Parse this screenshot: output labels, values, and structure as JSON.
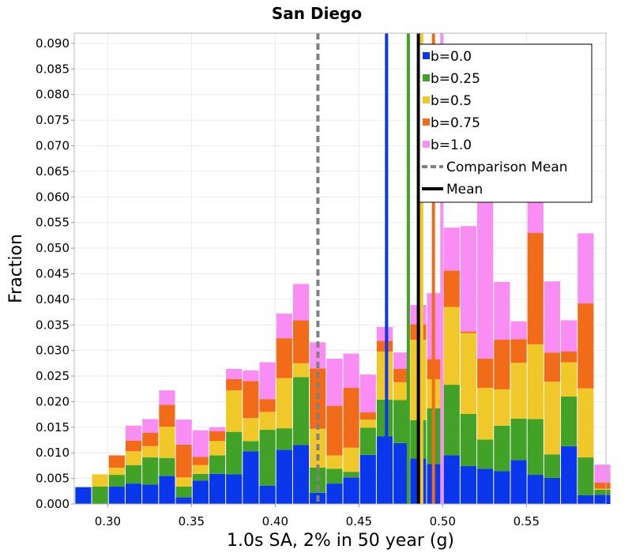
{
  "chart_data": {
    "type": "bar",
    "stacked": true,
    "title": "San Diego",
    "xlabel": "1.0s SA, 2% in 50 year (g)",
    "ylabel": "Fraction",
    "xlim": [
      0.28,
      0.5975
    ],
    "ylim": [
      0.0,
      0.092
    ],
    "bin_width": 0.01,
    "x_ticks": [
      "0.30",
      "0.35",
      "0.40",
      "0.45",
      "0.50",
      "0.55"
    ],
    "y_ticks": [
      "0.000",
      "0.005",
      "0.010",
      "0.015",
      "0.020",
      "0.025",
      "0.030",
      "0.035",
      "0.040",
      "0.045",
      "0.050",
      "0.055",
      "0.060",
      "0.065",
      "0.070",
      "0.075",
      "0.080",
      "0.085",
      "0.090"
    ],
    "grid": true,
    "legend_position": "top-right",
    "x": [
      0.2854,
      0.2954,
      0.3054,
      0.3154,
      0.3254,
      0.3354,
      0.3454,
      0.3554,
      0.3654,
      0.3754,
      0.3854,
      0.3954,
      0.4054,
      0.4154,
      0.4254,
      0.4354,
      0.4454,
      0.4554,
      0.4654,
      0.4754,
      0.4854,
      0.4954,
      0.5054,
      0.5154,
      0.5254,
      0.5354,
      0.5454,
      0.5554,
      0.5654,
      0.5754,
      0.5854,
      0.5954
    ],
    "series": [
      {
        "name": "b=0.0",
        "color": "#0a36ec",
        "values": [
          0.0033,
          0.0,
          0.0034,
          0.004,
          0.0038,
          0.0055,
          0.0013,
          0.0046,
          0.0059,
          0.0058,
          0.0103,
          0.0036,
          0.0106,
          0.0115,
          0.0022,
          0.004,
          0.0052,
          0.0096,
          0.0132,
          0.0119,
          0.0089,
          0.0078,
          0.0095,
          0.0074,
          0.0069,
          0.0064,
          0.0086,
          0.0057,
          0.0051,
          0.0113,
          0.0017,
          0.0018
        ]
      },
      {
        "name": "b=0.25",
        "color": "#41a227",
        "values": [
          0.0,
          0.0034,
          0.0023,
          0.0036,
          0.0053,
          0.0035,
          0.0021,
          0.0013,
          0.0036,
          0.0083,
          0.002,
          0.0109,
          0.0042,
          0.0133,
          0.0049,
          0.0029,
          0.0011,
          0.0053,
          0.0072,
          0.0084,
          0.0075,
          0.0109,
          0.0138,
          0.0102,
          0.0057,
          0.0089,
          0.0081,
          0.0109,
          0.0046,
          0.0097,
          0.0074,
          0.001
        ]
      },
      {
        "name": "b=0.5",
        "color": "#f1c82a",
        "values": [
          0.0,
          0.0024,
          0.0014,
          0.0027,
          0.0022,
          0.0061,
          0.0018,
          0.0017,
          0.0028,
          0.0081,
          0.0045,
          0.0035,
          0.0098,
          0.0027,
          0.0076,
          0.0026,
          0.0047,
          0.0016,
          0.0094,
          0.0035,
          0.0157,
          0.0057,
          0.0152,
          0.0158,
          0.0101,
          0.0071,
          0.0109,
          0.0146,
          0.0142,
          0.0067,
          0.0135,
          0.0002
        ]
      },
      {
        "name": "b=0.75",
        "color": "#f26b19",
        "values": [
          0.0,
          0.0,
          0.0024,
          0.0021,
          0.0026,
          0.0043,
          0.0064,
          0.0016,
          0.0019,
          0.0022,
          0.0072,
          0.0025,
          0.0078,
          0.0084,
          0.0118,
          0.0097,
          0.0117,
          0.0014,
          0.0021,
          0.0026,
          0.003,
          0.0039,
          0.0071,
          0.0003,
          0.0057,
          0.0097,
          0.0046,
          0.0218,
          0.0057,
          0.0021,
          0.0166,
          0.0012
        ]
      },
      {
        "name": "b=1.0",
        "color": "#f98df3",
        "values": [
          0.0,
          0.0,
          0.0,
          0.0029,
          0.0027,
          0.0028,
          0.0049,
          0.0052,
          0.0008,
          0.002,
          0.0021,
          0.0072,
          0.0048,
          0.0071,
          0.0051,
          0.0092,
          0.0067,
          0.0074,
          0.0027,
          0.0032,
          0.0038,
          0.0129,
          0.0084,
          0.0206,
          0.0315,
          0.0113,
          0.0035,
          0.0166,
          0.0139,
          0.0061,
          0.0137,
          0.0035
        ]
      }
    ],
    "vertical_lines": [
      {
        "name": "b=0.0 mean",
        "x": 0.4665,
        "color": "#0a36ec",
        "style": "solid"
      },
      {
        "name": "b=0.25 mean",
        "x": 0.4795,
        "color": "#41a227",
        "style": "solid"
      },
      {
        "name": "b=0.5 mean",
        "x": 0.4875,
        "color": "#f1c82a",
        "style": "solid"
      },
      {
        "name": "b=0.75 mean",
        "x": 0.4945,
        "color": "#f26b19",
        "style": "solid"
      },
      {
        "name": "b=1.0 mean",
        "x": 0.4995,
        "color": "#f98df3",
        "style": "solid"
      },
      {
        "name": "Comparison Mean",
        "x": 0.4255,
        "color": "#808080",
        "style": "dashed"
      },
      {
        "name": "Mean",
        "x": 0.4855,
        "color": "#000000",
        "style": "solid"
      }
    ],
    "legend": [
      {
        "label": "b=0.0",
        "kind": "box",
        "color": "#0a36ec"
      },
      {
        "label": "b=0.25",
        "kind": "box",
        "color": "#41a227"
      },
      {
        "label": "b=0.5",
        "kind": "box",
        "color": "#f1c82a"
      },
      {
        "label": "b=0.75",
        "kind": "box",
        "color": "#f26b19"
      },
      {
        "label": "b=1.0",
        "kind": "box",
        "color": "#f98df3"
      },
      {
        "label": "Comparison Mean",
        "kind": "dashed",
        "color": "#808080"
      },
      {
        "label": "Mean",
        "kind": "line",
        "color": "#000000"
      }
    ]
  }
}
